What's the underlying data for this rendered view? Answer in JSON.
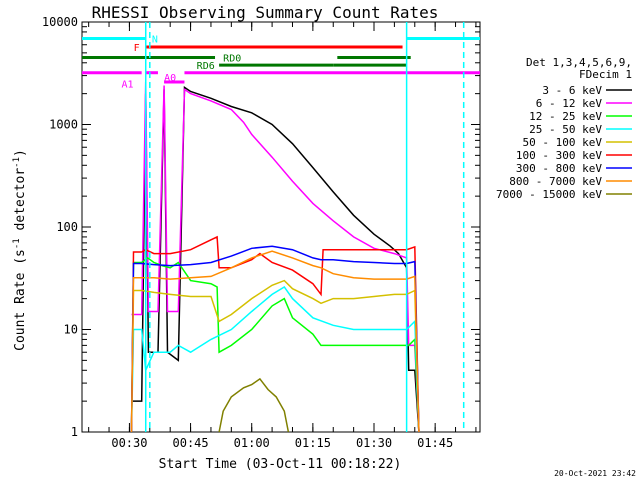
{
  "chart_data": {
    "type": "line",
    "title": "RHESSI Observing Summary Count Rates",
    "xlabel": "Start Time (03-Oct-11 00:18:22)",
    "ylabel": "Count Rate (s⁻¹ detector⁻¹)",
    "ylabel_main": "Count Rate (s",
    "ylabel_sup1": "-1",
    "ylabel_mid": " detector",
    "ylabel_sup2": "-1",
    "ylabel_end": ")",
    "yscale": "log",
    "ylim": [
      1,
      10000
    ],
    "xlim": [
      "00:18:22",
      "01:56:00"
    ],
    "x_ticks": [
      "00:30",
      "00:45",
      "01:00",
      "01:15",
      "01:30",
      "01:45"
    ],
    "y_ticks": [
      "1",
      "10",
      "100",
      "1000",
      "10000"
    ],
    "grid": false,
    "legend_header": [
      "Det 1,3,4,5,6,9,",
      "FDecim 1"
    ],
    "legend_placement": "right",
    "footer": "20-Oct-2021 23:42",
    "series": [
      {
        "name": "3 - 6 keV",
        "color": "#000000",
        "points": [
          [
            "00:30:30",
            2
          ],
          [
            "00:33:00",
            2
          ],
          [
            "00:34:00",
            2000
          ],
          [
            "00:34:40",
            6
          ],
          [
            "00:37:00",
            6
          ],
          [
            "00:38:30",
            2200
          ],
          [
            "00:39:20",
            6
          ],
          [
            "00:42:00",
            5
          ],
          [
            "00:43:30",
            2300
          ],
          [
            "00:45:00",
            2100
          ],
          [
            "00:50:00",
            1800
          ],
          [
            "00:55:00",
            1500
          ],
          [
            "01:00:00",
            1300
          ],
          [
            "01:05:00",
            1000
          ],
          [
            "01:10:00",
            650
          ],
          [
            "01:15:00",
            380
          ],
          [
            "01:20:00",
            220
          ],
          [
            "01:25:00",
            130
          ],
          [
            "01:30:00",
            85
          ],
          [
            "01:34:00",
            65
          ],
          [
            "01:36:00",
            55
          ],
          [
            "01:38:00",
            40
          ],
          [
            "01:38:30",
            4
          ],
          [
            "01:40:00",
            4
          ],
          [
            "01:41:00",
            1
          ]
        ]
      },
      {
        "name": "6 - 12 keV",
        "color": "#ff00ff",
        "points": [
          [
            "00:30:30",
            14
          ],
          [
            "00:33:00",
            14
          ],
          [
            "00:34:00",
            2600
          ],
          [
            "00:34:40",
            15
          ],
          [
            "00:37:00",
            15
          ],
          [
            "00:38:30",
            2400
          ],
          [
            "00:39:20",
            15
          ],
          [
            "00:42:00",
            15
          ],
          [
            "00:43:30",
            2200
          ],
          [
            "00:45:00",
            2000
          ],
          [
            "00:50:00",
            1700
          ],
          [
            "00:55:00",
            1400
          ],
          [
            "00:58:00",
            1050
          ],
          [
            "01:00:00",
            800
          ],
          [
            "01:05:00",
            480
          ],
          [
            "01:10:00",
            280
          ],
          [
            "01:15:00",
            170
          ],
          [
            "01:20:00",
            115
          ],
          [
            "01:25:00",
            80
          ],
          [
            "01:30:00",
            62
          ],
          [
            "01:35:00",
            55
          ],
          [
            "01:38:00",
            50
          ],
          [
            "01:38:30",
            7
          ],
          [
            "01:40:00",
            7
          ],
          [
            "01:41:00",
            1
          ]
        ]
      },
      {
        "name": "12 - 25 keV",
        "color": "#00ff00",
        "points": [
          [
            "00:30:30",
            1
          ],
          [
            "00:31:00",
            45
          ],
          [
            "00:33:00",
            45
          ],
          [
            "00:34:30",
            50
          ],
          [
            "00:36:00",
            45
          ],
          [
            "00:38:00",
            42
          ],
          [
            "00:40:00",
            40
          ],
          [
            "00:42:00",
            45
          ],
          [
            "00:45:00",
            30
          ],
          [
            "00:50:00",
            28
          ],
          [
            "00:51:30",
            26
          ],
          [
            "00:52:00",
            6
          ],
          [
            "00:55:00",
            7
          ],
          [
            "01:00:00",
            10
          ],
          [
            "01:05:00",
            17
          ],
          [
            "01:08:00",
            20
          ],
          [
            "01:10:00",
            13
          ],
          [
            "01:15:00",
            9
          ],
          [
            "01:17:00",
            7
          ],
          [
            "01:20:00",
            7
          ],
          [
            "01:25:00",
            7
          ],
          [
            "01:30:00",
            7
          ],
          [
            "01:35:00",
            7
          ],
          [
            "01:38:00",
            7
          ],
          [
            "01:38:30",
            7
          ],
          [
            "01:40:00",
            8
          ],
          [
            "01:41:00",
            1
          ]
        ]
      },
      {
        "name": "25 - 50 keV",
        "color": "#00ffff",
        "points": [
          [
            "00:30:30",
            1
          ],
          [
            "00:31:00",
            10
          ],
          [
            "00:33:00",
            10
          ],
          [
            "00:34:00",
            4
          ],
          [
            "00:36:00",
            6
          ],
          [
            "00:40:00",
            6
          ],
          [
            "00:42:00",
            7
          ],
          [
            "00:45:00",
            6
          ],
          [
            "00:50:00",
            8
          ],
          [
            "00:55:00",
            10
          ],
          [
            "01:00:00",
            15
          ],
          [
            "01:05:00",
            22
          ],
          [
            "01:08:00",
            26
          ],
          [
            "01:10:00",
            20
          ],
          [
            "01:15:00",
            13
          ],
          [
            "01:20:00",
            11
          ],
          [
            "01:25:00",
            10
          ],
          [
            "01:30:00",
            10
          ],
          [
            "01:35:00",
            10
          ],
          [
            "01:38:00",
            10
          ],
          [
            "01:40:00",
            12
          ],
          [
            "01:41:00",
            1
          ]
        ]
      },
      {
        "name": "50 - 100 keV",
        "color": "#d4c000",
        "points": [
          [
            "00:30:30",
            1
          ],
          [
            "00:31:00",
            24
          ],
          [
            "00:33:00",
            24
          ],
          [
            "00:36:00",
            23
          ],
          [
            "00:40:00",
            22
          ],
          [
            "00:45:00",
            21
          ],
          [
            "00:50:00",
            21
          ],
          [
            "00:52:00",
            12
          ],
          [
            "00:55:00",
            14
          ],
          [
            "01:00:00",
            20
          ],
          [
            "01:05:00",
            27
          ],
          [
            "01:08:00",
            30
          ],
          [
            "01:10:00",
            25
          ],
          [
            "01:15:00",
            20
          ],
          [
            "01:17:00",
            18
          ],
          [
            "01:20:00",
            20
          ],
          [
            "01:25:00",
            20
          ],
          [
            "01:30:00",
            21
          ],
          [
            "01:35:00",
            22
          ],
          [
            "01:38:00",
            22
          ],
          [
            "01:40:00",
            24
          ],
          [
            "01:41:00",
            1
          ]
        ]
      },
      {
        "name": "100 - 300 keV",
        "color": "#ff0000",
        "points": [
          [
            "00:30:30",
            1
          ],
          [
            "00:31:00",
            57
          ],
          [
            "00:33:00",
            57
          ],
          [
            "00:34:00",
            60
          ],
          [
            "00:36:00",
            55
          ],
          [
            "00:40:00",
            55
          ],
          [
            "00:45:00",
            60
          ],
          [
            "00:50:00",
            75
          ],
          [
            "00:51:30",
            80
          ],
          [
            "00:52:00",
            40
          ],
          [
            "00:55:00",
            40
          ],
          [
            "01:00:00",
            48
          ],
          [
            "01:02:00",
            55
          ],
          [
            "01:05:00",
            45
          ],
          [
            "01:10:00",
            38
          ],
          [
            "01:15:00",
            28
          ],
          [
            "01:17:00",
            22
          ],
          [
            "01:17:30",
            60
          ],
          [
            "01:20:00",
            60
          ],
          [
            "01:25:00",
            60
          ],
          [
            "01:30:00",
            60
          ],
          [
            "01:35:00",
            60
          ],
          [
            "01:38:00",
            60
          ],
          [
            "01:40:00",
            64
          ],
          [
            "01:41:00",
            1
          ]
        ]
      },
      {
        "name": "300 - 800 keV",
        "color": "#0000ff",
        "points": [
          [
            "00:30:30",
            1
          ],
          [
            "00:31:00",
            44
          ],
          [
            "00:33:00",
            44
          ],
          [
            "00:36:00",
            43
          ],
          [
            "00:40:00",
            42
          ],
          [
            "00:45:00",
            43
          ],
          [
            "00:50:00",
            45
          ],
          [
            "00:55:00",
            52
          ],
          [
            "01:00:00",
            62
          ],
          [
            "01:05:00",
            65
          ],
          [
            "01:10:00",
            60
          ],
          [
            "01:15:00",
            50
          ],
          [
            "01:17:00",
            48
          ],
          [
            "01:20:00",
            48
          ],
          [
            "01:25:00",
            46
          ],
          [
            "01:30:00",
            45
          ],
          [
            "01:35:00",
            44
          ],
          [
            "01:38:00",
            44
          ],
          [
            "01:40:00",
            46
          ],
          [
            "01:41:00",
            1
          ]
        ]
      },
      {
        "name": "800 - 7000 keV",
        "color": "#ff8c00",
        "points": [
          [
            "00:30:30",
            1
          ],
          [
            "00:31:00",
            32
          ],
          [
            "00:33:00",
            32
          ],
          [
            "00:36:00",
            32
          ],
          [
            "00:40:00",
            31
          ],
          [
            "00:45:00",
            32
          ],
          [
            "00:50:00",
            33
          ],
          [
            "00:55:00",
            40
          ],
          [
            "01:00:00",
            50
          ],
          [
            "01:05:00",
            58
          ],
          [
            "01:10:00",
            50
          ],
          [
            "01:15:00",
            42
          ],
          [
            "01:17:00",
            40
          ],
          [
            "01:20:00",
            35
          ],
          [
            "01:25:00",
            32
          ],
          [
            "01:30:00",
            31
          ],
          [
            "01:35:00",
            31
          ],
          [
            "01:38:00",
            31
          ],
          [
            "01:40:00",
            33
          ],
          [
            "01:41:00",
            1
          ]
        ]
      },
      {
        "name": "7000 - 15000 keV",
        "color": "#808000",
        "points": [
          [
            "00:52:00",
            1
          ],
          [
            "00:53:00",
            1.6
          ],
          [
            "00:55:00",
            2.2
          ],
          [
            "00:58:00",
            2.7
          ],
          [
            "01:00:00",
            2.9
          ],
          [
            "01:02:00",
            3.3
          ],
          [
            "01:04:00",
            2.6
          ],
          [
            "01:06:00",
            2.2
          ],
          [
            "01:08:00",
            1.6
          ],
          [
            "01:09:00",
            1
          ]
        ]
      }
    ],
    "attenuator_states": [
      {
        "label": "A0",
        "color": "#ff00ff",
        "level": 2600,
        "segments": [
          [
            "00:38:30",
            "00:43:30"
          ]
        ]
      },
      {
        "label": "A1",
        "color": "#ff00ff",
        "level": 3200,
        "segments": [
          [
            "00:18:22",
            "00:33:00"
          ],
          [
            "00:34:00",
            "00:37:00"
          ],
          [
            "00:43:30",
            "01:56:00"
          ]
        ]
      }
    ],
    "flag_bars": [
      {
        "label": "F",
        "color": "#ff0000",
        "level": 5700,
        "segments": [
          [
            "00:34:00",
            "01:37:00"
          ]
        ]
      },
      {
        "label": "RD0",
        "color": "#007700",
        "level": 4500,
        "segments": [
          [
            "00:18:22",
            "00:51:00"
          ],
          [
            "01:21:00",
            "01:39:00"
          ]
        ]
      },
      {
        "label": "RD6",
        "color": "#007700",
        "level": 3800,
        "segments": [
          [
            "00:52:00",
            "01:20:00"
          ],
          [
            "01:20:00",
            "01:38:00"
          ]
        ]
      },
      {
        "label": "N",
        "color": "#00ffff",
        "level": 6900,
        "segments": [
          [
            "00:18:22",
            "00:34:00"
          ],
          [
            "01:38:00",
            "01:56:00"
          ]
        ]
      }
    ],
    "night_lines": [
      {
        "time": "00:34:00",
        "style": "solid"
      },
      {
        "time": "01:38:00",
        "style": "solid"
      }
    ],
    "saa_lines": [
      {
        "time": "00:35:00",
        "style": "dashed"
      },
      {
        "time": "01:52:00",
        "style": "dashed"
      }
    ],
    "bar_labels": [
      {
        "text": "N",
        "color": "#00ffff"
      },
      {
        "text": "F",
        "color": "#ff0000"
      },
      {
        "text": "RD0",
        "color": "#007700"
      },
      {
        "text": "RD6",
        "color": "#007700"
      },
      {
        "text": "A0",
        "color": "#ff00ff"
      },
      {
        "text": "A1",
        "color": "#ff00ff"
      }
    ]
  }
}
